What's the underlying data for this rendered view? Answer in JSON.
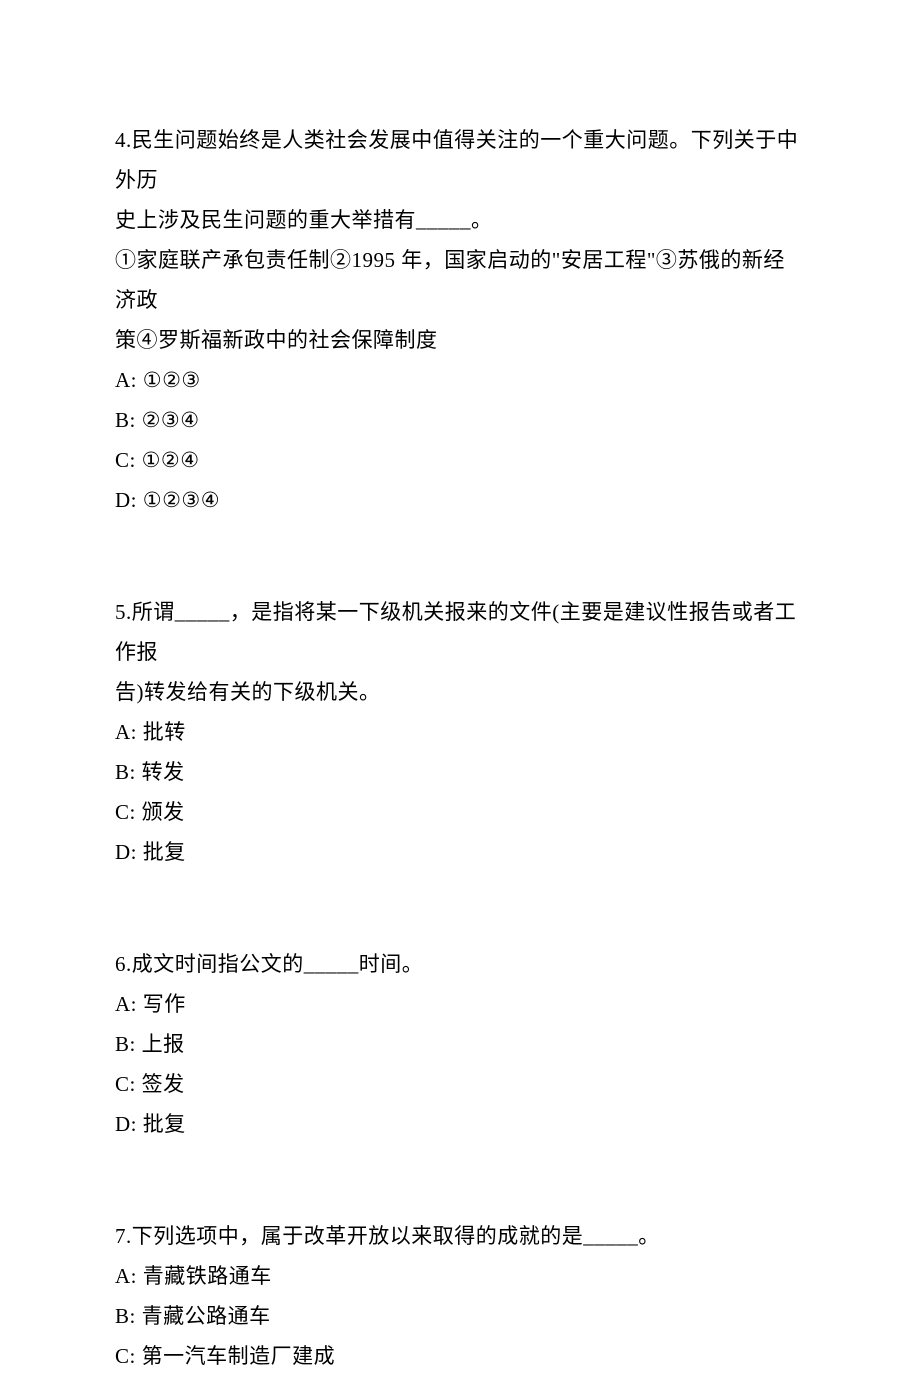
{
  "questions": [
    {
      "number": "4.",
      "text_line1": "民生问题始终是人类社会发展中值得关注的一个重大问题。下列关于中外历",
      "text_line2": "史上涉及民生问题的重大举措有_____。",
      "text_line3": "①家庭联产承包责任制②1995 年，国家启动的\"安居工程\"③苏俄的新经济政",
      "text_line4": "策④罗斯福新政中的社会保障制度",
      "option_a": "A: ①②③",
      "option_b": "B: ②③④",
      "option_c": "C: ①②④",
      "option_d": "D: ①②③④"
    },
    {
      "number": "5.",
      "text_line1": "所谓_____，是指将某一下级机关报来的文件(主要是建议性报告或者工作报",
      "text_line2": "告)转发给有关的下级机关。",
      "option_a": "A: 批转",
      "option_b": "B: 转发",
      "option_c": "C: 颁发",
      "option_d": "D: 批复"
    },
    {
      "number": "6.",
      "text_line1": "成文时间指公文的_____时间。",
      "option_a": "A: 写作",
      "option_b": "B: 上报",
      "option_c": "C: 签发",
      "option_d": "D: 批复"
    },
    {
      "number": "7.",
      "text_line1": "下列选项中，属于改革开放以来取得的成就的是_____。",
      "option_a": "A: 青藏铁路通车",
      "option_b": "B: 青藏公路通车",
      "option_c": "C: 第一汽车制造厂建成"
    }
  ]
}
